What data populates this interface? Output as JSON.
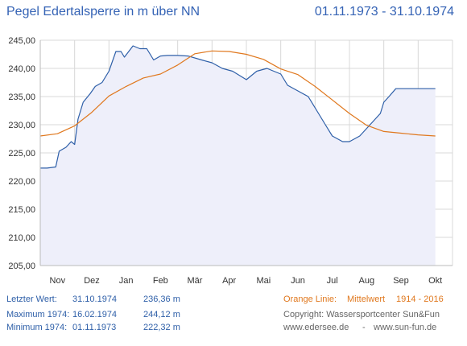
{
  "header": {
    "title": "Pegel Edertalsperre in m über NN",
    "date_range": "01.11.1973 - 31.10.1974"
  },
  "chart_data": {
    "type": "line",
    "ylim": [
      205,
      245
    ],
    "yticks": [
      "205,00",
      "210,00",
      "215,00",
      "220,00",
      "225,00",
      "230,00",
      "235,00",
      "240,00",
      "245,00"
    ],
    "xticks": [
      "Nov",
      "Dez",
      "Jan",
      "Feb",
      "Mär",
      "Apr",
      "Mai",
      "Jun",
      "Jul",
      "Aug",
      "Sep",
      "Okt"
    ],
    "grid": true,
    "series": [
      {
        "color": "#2e5fa8",
        "fill": true,
        "x": [
          0,
          0.2,
          0.45,
          0.55,
          0.75,
          0.9,
          1.0,
          1.1,
          1.25,
          1.45,
          1.6,
          1.8,
          2.0,
          2.2,
          2.35,
          2.45,
          2.55,
          2.7,
          2.9,
          3.1,
          3.3,
          3.5,
          3.7,
          4.0,
          4.3,
          4.7,
          5.0,
          5.3,
          5.6,
          6.0,
          6.3,
          6.6,
          6.8,
          7.0,
          7.2,
          7.5,
          7.8,
          8.1,
          8.3,
          8.5,
          8.8,
          9.0,
          9.3,
          9.6,
          9.9,
          10.0,
          10.15,
          10.35,
          10.55,
          10.8,
          11.0,
          11.2,
          11.35,
          11.5
        ],
        "y": [
          222.3,
          222.3,
          222.5,
          225.3,
          226.0,
          227.0,
          226.5,
          231.0,
          234.0,
          235.5,
          236.8,
          237.5,
          239.5,
          243.0,
          243.0,
          242.0,
          242.8,
          244.0,
          243.5,
          243.5,
          241.5,
          242.2,
          242.3,
          242.3,
          242.2,
          241.5,
          241.0,
          240.0,
          239.5,
          238.0,
          239.5,
          240.0,
          239.5,
          239.0,
          237.0,
          236.0,
          235.0,
          232.0,
          230.0,
          228.0,
          227.0,
          227.0,
          228.0,
          230.0,
          232.0,
          234.0,
          235.0,
          236.4,
          236.4,
          236.4,
          236.4,
          236.4,
          236.4,
          236.4
        ]
      },
      {
        "name": "Mittelwert",
        "color": "#e0781e",
        "fill": false,
        "x": [
          0,
          0.5,
          1.0,
          1.5,
          2.0,
          2.5,
          3.0,
          3.5,
          4.0,
          4.5,
          5.0,
          5.5,
          6.0,
          6.5,
          7.0,
          7.5,
          8.0,
          8.5,
          9.0,
          9.5,
          10.0,
          10.5,
          11.0,
          11.5
        ],
        "y": [
          228.0,
          228.4,
          229.8,
          232.2,
          235.1,
          236.8,
          238.3,
          239.0,
          240.6,
          242.6,
          243.1,
          243.0,
          242.5,
          241.6,
          239.9,
          238.9,
          236.8,
          234.4,
          232.0,
          229.9,
          228.8,
          228.5,
          228.2,
          228.0
        ]
      }
    ]
  },
  "footer": {
    "last_label": "Letzter Wert:",
    "last_date": "31.10.1974",
    "last_value": "236,36 m",
    "max_label": "Maximum 1974:",
    "max_date": "16.02.1974",
    "max_value": "244,12 m",
    "min_label": "Minimum  1974:",
    "min_date": "01.11.1973",
    "min_value": "222,32 m",
    "orange_label": "Orange Linie:",
    "orange_desc": "Mittelwert",
    "orange_years": "1914 - 2016",
    "copyright": "Copyright: Wassersportcenter Sun&Fun",
    "site1": "www.edersee.de",
    "sep": "-",
    "site2": "www.sun-fun.de"
  }
}
